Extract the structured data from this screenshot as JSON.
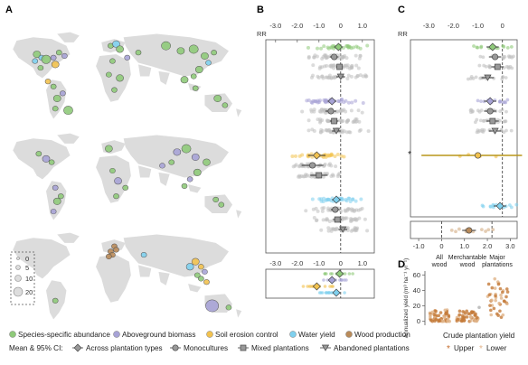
{
  "panels": {
    "A": {
      "label": "A"
    },
    "B": {
      "label": "B",
      "axis_label": "RR"
    },
    "C": {
      "label": "C",
      "axis_label": "RR"
    },
    "D": {
      "label": "D"
    }
  },
  "size_legend": {
    "values": [
      "0",
      "5",
      "10",
      "20"
    ]
  },
  "legend": {
    "categories": [
      {
        "label": "Species-specific abundance",
        "color": "#8fca7a"
      },
      {
        "label": "Aboveground biomass",
        "color": "#a7a3d6"
      },
      {
        "label": "Soil erosion control",
        "color": "#f2c24f"
      },
      {
        "label": "Water yield",
        "color": "#7fd0ee"
      },
      {
        "label": "Wood production",
        "color": "#b98b5a"
      }
    ],
    "ci_title": "Mean & 95% CI:",
    "types": [
      {
        "label": "Across plantation types",
        "shape": "diamond"
      },
      {
        "label": "Monocultures",
        "shape": "circle"
      },
      {
        "label": "Mixed plantations",
        "shape": "square"
      },
      {
        "label": "Abandoned plantations",
        "shape": "triangle"
      }
    ],
    "crude_title": "Crude plantation yield",
    "crude": [
      {
        "label": "Upper",
        "color": "#c46a2a"
      },
      {
        "label": "Lower",
        "color": "#e3b58c"
      }
    ]
  },
  "chart_data": [
    {
      "id": "B",
      "type": "scatter",
      "title": "",
      "xlabel": "RR",
      "xticks": [
        -3.0,
        -2.0,
        -1.0,
        0,
        1.0
      ],
      "xlim": [
        -3.2,
        1.3
      ],
      "groups": [
        {
          "name": "Species-specific abundance",
          "color": "#8fca7a",
          "rows": [
            {
              "type": "Across plantation types",
              "mean": -0.1,
              "ci": [
                -0.3,
                0.1
              ]
            },
            {
              "type": "Monocultures",
              "mean": -0.3,
              "ci": [
                -0.5,
                -0.1
              ]
            },
            {
              "type": "Mixed plantations",
              "mean": -0.05,
              "ci": [
                -0.2,
                0.1
              ]
            },
            {
              "type": "Abandoned plantations",
              "mean": 0.0,
              "ci": [
                -0.2,
                0.2
              ]
            }
          ]
        },
        {
          "name": "Aboveground biomass",
          "color": "#a7a3d6",
          "rows": [
            {
              "type": "Across plantation types",
              "mean": -0.4,
              "ci": [
                -0.6,
                -0.2
              ]
            },
            {
              "type": "Monocultures",
              "mean": -0.45,
              "ci": [
                -0.7,
                -0.2
              ]
            },
            {
              "type": "Mixed plantations",
              "mean": -0.3,
              "ci": [
                -0.5,
                -0.1
              ]
            },
            {
              "type": "Abandoned plantations",
              "mean": -0.2,
              "ci": [
                -0.4,
                0.0
              ]
            }
          ]
        },
        {
          "name": "Soil erosion control",
          "color": "#f2c24f",
          "rows": [
            {
              "type": "Across plantation types",
              "mean": -1.1,
              "ci": [
                -1.5,
                -0.7
              ]
            },
            {
              "type": "Monocultures",
              "mean": -1.3,
              "ci": [
                -1.8,
                -0.8
              ]
            },
            {
              "type": "Mixed plantations",
              "mean": -1.0,
              "ci": [
                -1.4,
                -0.6
              ]
            }
          ]
        },
        {
          "name": "Water yield",
          "color": "#7fd0ee",
          "rows": [
            {
              "type": "Across plantation types",
              "mean": -0.2,
              "ci": [
                -0.4,
                0.0
              ]
            },
            {
              "type": "Monocultures",
              "mean": -0.25,
              "ci": [
                -0.45,
                -0.05
              ]
            },
            {
              "type": "Mixed plantations",
              "mean": -0.15,
              "ci": [
                -0.35,
                0.05
              ]
            },
            {
              "type": "Abandoned plantations",
              "mean": 0.1,
              "ci": [
                -0.1,
                0.3
              ]
            }
          ]
        }
      ]
    },
    {
      "id": "B-lower",
      "type": "scatter",
      "xticks": [
        -3.0,
        -2.0,
        -1.0,
        0,
        1.0
      ],
      "xlim": [
        -3.2,
        1.3
      ],
      "rows": [
        {
          "name": "Species-specific abundance",
          "color": "#8fca7a",
          "mean": -0.05
        },
        {
          "name": "Aboveground biomass",
          "color": "#a7a3d6",
          "mean": -0.4
        },
        {
          "name": "Soil erosion control",
          "color": "#f2c24f",
          "mean": -1.1
        },
        {
          "name": "Water yield",
          "color": "#7fd0ee",
          "mean": -0.2
        }
      ]
    },
    {
      "id": "C",
      "type": "scatter",
      "xlabel": "RR",
      "xticks": [
        -3.0,
        -2.0,
        -1.0,
        0
      ],
      "xticks_bottom": [
        -1.0,
        0,
        1.0,
        2.0,
        3.0
      ],
      "annotation": "*",
      "rows": [
        {
          "name": "Species-specific abundance",
          "color": "#8fca7a",
          "mean": -0.4
        },
        {
          "name": "Aboveground biomass",
          "color": "#a7a3d6",
          "mean": -0.5
        },
        {
          "name": "Soil erosion control",
          "color": "#f2c24f",
          "mean": -1.0,
          "ci": [
            -3.3,
            0.8
          ]
        },
        {
          "name": "Wood production",
          "color": "#b98b5a",
          "mean": 1.2
        }
      ]
    },
    {
      "id": "D",
      "type": "scatter",
      "ylabel": "Annualized yield (m³ ha⁻¹ yr⁻¹)",
      "yticks": [
        0,
        20,
        40,
        60
      ],
      "ylim": [
        -5,
        65
      ],
      "categories": [
        "All wood",
        "Merchantable wood",
        "Major plantations"
      ],
      "category_lines": [
        [
          "All",
          "wood"
        ],
        [
          "Merchantable",
          "wood"
        ],
        [
          "Major",
          "plantations"
        ]
      ],
      "ranges": [
        [
          0,
          15
        ],
        [
          0,
          14
        ],
        [
          5,
          55
        ]
      ]
    }
  ]
}
